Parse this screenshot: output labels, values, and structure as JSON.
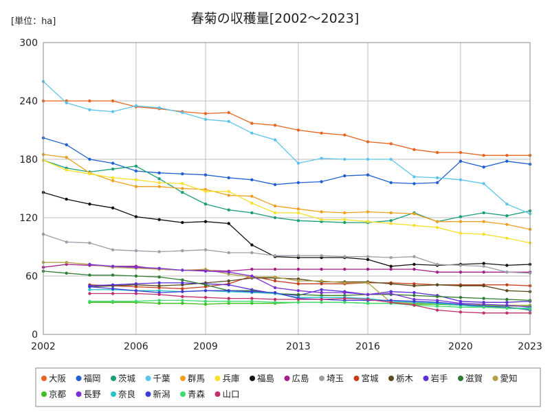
{
  "chart_data": {
    "type": "line",
    "title": "春菊の収穫量[2002～2023]",
    "unit_label": "[単位：ha]",
    "xlabel": "",
    "ylabel": "",
    "xlim": [
      2002,
      2023
    ],
    "ylim": [
      0,
      300
    ],
    "x_ticks": [
      2002,
      2006,
      2009,
      2013,
      2016,
      2020,
      2023
    ],
    "y_ticks": [
      0,
      60,
      120,
      180,
      240,
      300
    ],
    "grid": true,
    "legend_position": "bottom",
    "x": [
      2002,
      2003,
      2004,
      2005,
      2006,
      2007,
      2008,
      2009,
      2010,
      2011,
      2012,
      2013,
      2014,
      2015,
      2016,
      2017,
      2018,
      2019,
      2020,
      2021,
      2022,
      2023
    ],
    "series": [
      {
        "name": "大阪",
        "color": "#e8641f",
        "values": [
          240,
          240,
          240,
          240,
          234,
          232,
          229,
          227,
          228,
          217,
          215,
          210,
          207,
          205,
          198,
          196,
          190,
          187,
          187,
          184,
          184,
          184
        ]
      },
      {
        "name": "福岡",
        "color": "#1f5fd1",
        "values": [
          202,
          195,
          180,
          176,
          168,
          166,
          165,
          164,
          161,
          159,
          154,
          156,
          157,
          163,
          164,
          156,
          155,
          156,
          178,
          172,
          178,
          175
        ]
      },
      {
        "name": "茨城",
        "color": "#1a9e7a",
        "values": [
          179,
          171,
          167,
          170,
          173,
          160,
          146,
          134,
          128,
          125,
          120,
          117,
          116,
          115,
          115,
          117,
          125,
          116,
          121,
          125,
          122,
          127
        ]
      },
      {
        "name": "千葉",
        "color": "#5cc4ec",
        "values": [
          260,
          238,
          231,
          229,
          235,
          233,
          228,
          221,
          219,
          207,
          200,
          176,
          181,
          180,
          180,
          180,
          162,
          161,
          159,
          155,
          134,
          124
        ]
      },
      {
        "name": "群馬",
        "color": "#f0a020",
        "values": [
          185,
          182,
          166,
          158,
          152,
          152,
          150,
          149,
          143,
          142,
          132,
          129,
          126,
          125,
          126,
          125,
          124,
          116,
          116,
          116,
          113,
          108
        ]
      },
      {
        "name": "兵庫",
        "color": "#f5e02a",
        "values": [
          179,
          169,
          165,
          161,
          159,
          156,
          155,
          147,
          147,
          135,
          125,
          125,
          118,
          118,
          116,
          114,
          112,
          110,
          104,
          103,
          99,
          94
        ]
      },
      {
        "name": "福島",
        "color": "#111111",
        "values": [
          146,
          139,
          134,
          130,
          121,
          118,
          115,
          116,
          114,
          92,
          80,
          79,
          79,
          79,
          77,
          70,
          72,
          71,
          72,
          73,
          71,
          72
        ]
      },
      {
        "name": "広島",
        "color": "#a3208a",
        "values": [
          69,
          72,
          71,
          70,
          70,
          67,
          66,
          66,
          65,
          67,
          67,
          67,
          67,
          67,
          67,
          67,
          67,
          64,
          64,
          64,
          64,
          64
        ]
      },
      {
        "name": "埼玉",
        "color": "#9aa0a6",
        "values": [
          103,
          95,
          94,
          87,
          86,
          85,
          86,
          87,
          84,
          84,
          81,
          81,
          81,
          80,
          80,
          79,
          80,
          72,
          71,
          70,
          64,
          63
        ]
      },
      {
        "name": "宮城",
        "color": "#c63d1c",
        "values": [
          null,
          null,
          51,
          50,
          49,
          48,
          47,
          49,
          52,
          60,
          55,
          52,
          52,
          52,
          53,
          53,
          52,
          51,
          51,
          51,
          51,
          50
        ]
      },
      {
        "name": "栃木",
        "color": "#5a4a1e",
        "values": [
          null,
          null,
          49,
          50,
          51,
          50,
          51,
          53,
          55,
          58,
          58,
          57,
          54,
          54,
          54,
          52,
          50,
          51,
          50,
          50,
          45,
          44
        ]
      },
      {
        "name": "岩手",
        "color": "#5a2fd6",
        "values": [
          null,
          null,
          50,
          51,
          52,
          53,
          53,
          52,
          51,
          46,
          42,
          40,
          46,
          44,
          41,
          44,
          43,
          40,
          34,
          33,
          33,
          34
        ]
      },
      {
        "name": "滋賀",
        "color": "#2e7d32",
        "values": [
          65,
          63,
          61,
          61,
          60,
          59,
          56,
          51,
          45,
          45,
          42,
          41,
          40,
          40,
          41,
          41,
          40,
          39,
          38,
          37,
          36,
          35
        ]
      },
      {
        "name": "愛知",
        "color": "#b4a048",
        "values": [
          74,
          74,
          72,
          69,
          68,
          67,
          66,
          67,
          62,
          59,
          59,
          55,
          55,
          53,
          53,
          33,
          32,
          31,
          31,
          30,
          30,
          30
        ]
      },
      {
        "name": "京都",
        "color": "#3fbf1f",
        "values": [
          null,
          null,
          33,
          33,
          33,
          32,
          32,
          31,
          32,
          32,
          32,
          33,
          33,
          33,
          32,
          32,
          31,
          31,
          30,
          30,
          29,
          29
        ]
      },
      {
        "name": "長野",
        "color": "#7b2fd6",
        "values": [
          null,
          null,
          72,
          70,
          69,
          68,
          66,
          65,
          64,
          60,
          48,
          45,
          43,
          43,
          41,
          42,
          36,
          35,
          32,
          31,
          30,
          28
        ]
      },
      {
        "name": "奈良",
        "color": "#26c6c6",
        "values": [
          null,
          null,
          46,
          46,
          45,
          45,
          44,
          45,
          44,
          43,
          42,
          38,
          38,
          38,
          37,
          34,
          33,
          32,
          30,
          28,
          27,
          27
        ]
      },
      {
        "name": "新潟",
        "color": "#3d3dd6",
        "values": [
          null,
          null,
          49,
          47,
          45,
          43,
          44,
          45,
          45,
          44,
          43,
          37,
          36,
          35,
          35,
          35,
          34,
          33,
          31,
          29,
          28,
          25
        ]
      },
      {
        "name": "青森",
        "color": "#3ddc6a",
        "values": [
          null,
          null,
          34,
          34,
          34,
          35,
          35,
          34,
          34,
          34,
          33,
          33,
          33,
          33,
          32,
          32,
          30,
          29,
          28,
          28,
          27,
          26
        ]
      },
      {
        "name": "山口",
        "color": "#c0306a",
        "values": [
          null,
          null,
          42,
          42,
          42,
          41,
          39,
          38,
          37,
          37,
          36,
          36,
          36,
          37,
          36,
          33,
          30,
          25,
          23,
          22,
          22,
          22
        ]
      }
    ]
  }
}
